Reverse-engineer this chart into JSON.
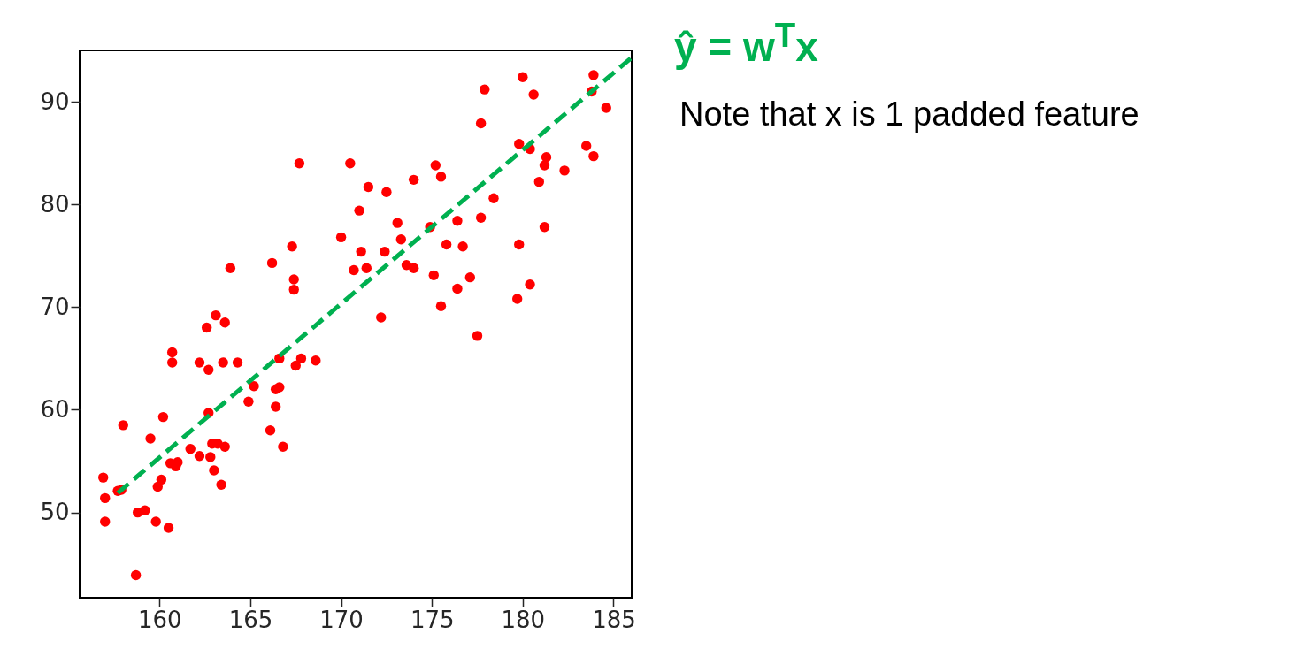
{
  "chart_data": {
    "type": "scatter",
    "xlim": [
      155.6,
      186.0
    ],
    "ylim": [
      41.7,
      95.0
    ],
    "xticks": [
      160,
      165,
      170,
      175,
      180,
      185
    ],
    "yticks": [
      50,
      60,
      70,
      80,
      90
    ],
    "grid": false,
    "annotations": [
      "Note that x is 1 padded feature"
    ],
    "series": [
      {
        "color": "#ff0000",
        "marker": "circle",
        "x": [
          167.7,
          170.5,
          171.5,
          171.0,
          170.0,
          167.3,
          171.1,
          166.2,
          163.9,
          170.7,
          171.4,
          167.4,
          167.4,
          163.1,
          163.6,
          162.6,
          160.7,
          160.7,
          162.2,
          162.7,
          163.5,
          164.3,
          166.6,
          167.8,
          167.5,
          168.6,
          165.2,
          166.6,
          166.4,
          164.9,
          166.4,
          162.7,
          160.2,
          158.0,
          166.1,
          159.5,
          166.8,
          162.9,
          163.6,
          163.2,
          161.7,
          162.2,
          162.8,
          160.6,
          161.0,
          160.9,
          163.0,
          163.4,
          160.1,
          159.9,
          156.9,
          157.9,
          157.7,
          157.0,
          158.8,
          159.2,
          157.0,
          159.8,
          160.5,
          158.7,
          183.9,
          183.8,
          180.0,
          180.6,
          177.9,
          177.7,
          184.6,
          179.8,
          180.4,
          183.5,
          183.9,
          181.3,
          181.2,
          182.3,
          180.9,
          175.2,
          175.5,
          174.0,
          172.5,
          178.4,
          177.7,
          176.4,
          173.1,
          181.2,
          174.9,
          173.3,
          175.8,
          176.7,
          179.8,
          172.4,
          173.6,
          174.0,
          175.1,
          177.1,
          176.4,
          180.4,
          179.7,
          175.5,
          172.2,
          177.5
        ],
        "values": [
          84.0,
          84.0,
          81.7,
          79.4,
          76.8,
          75.9,
          75.4,
          74.3,
          73.8,
          73.6,
          73.8,
          72.7,
          71.7,
          69.2,
          68.5,
          68.0,
          65.6,
          64.6,
          64.6,
          63.9,
          64.6,
          64.6,
          65.0,
          65.0,
          64.3,
          64.8,
          62.3,
          62.2,
          62.0,
          60.8,
          60.3,
          59.7,
          59.3,
          58.5,
          58.0,
          57.2,
          56.4,
          56.7,
          56.4,
          56.7,
          56.2,
          55.5,
          55.4,
          54.8,
          54.9,
          54.5,
          54.1,
          52.7,
          53.2,
          52.5,
          53.4,
          52.2,
          52.1,
          51.4,
          50.0,
          50.2,
          49.1,
          49.1,
          48.5,
          43.9,
          92.6,
          91.0,
          92.4,
          90.7,
          91.2,
          87.9,
          89.4,
          85.9,
          85.4,
          85.7,
          84.7,
          84.6,
          83.8,
          83.3,
          82.2,
          83.8,
          82.7,
          82.4,
          81.2,
          80.6,
          78.7,
          78.4,
          78.2,
          77.8,
          77.8,
          76.6,
          76.1,
          75.9,
          76.1,
          75.4,
          74.1,
          73.8,
          73.1,
          72.9,
          71.8,
          72.2,
          70.8,
          70.1,
          69.0,
          67.2
        ]
      },
      {
        "type": "line",
        "name": "ŷ = w$^{T}$x",
        "color": "#00b050",
        "line_style": "dashed",
        "marker": "none",
        "x": [
          157.7,
          186.0
        ],
        "values": [
          51.9,
          94.3
        ]
      }
    ]
  }
}
